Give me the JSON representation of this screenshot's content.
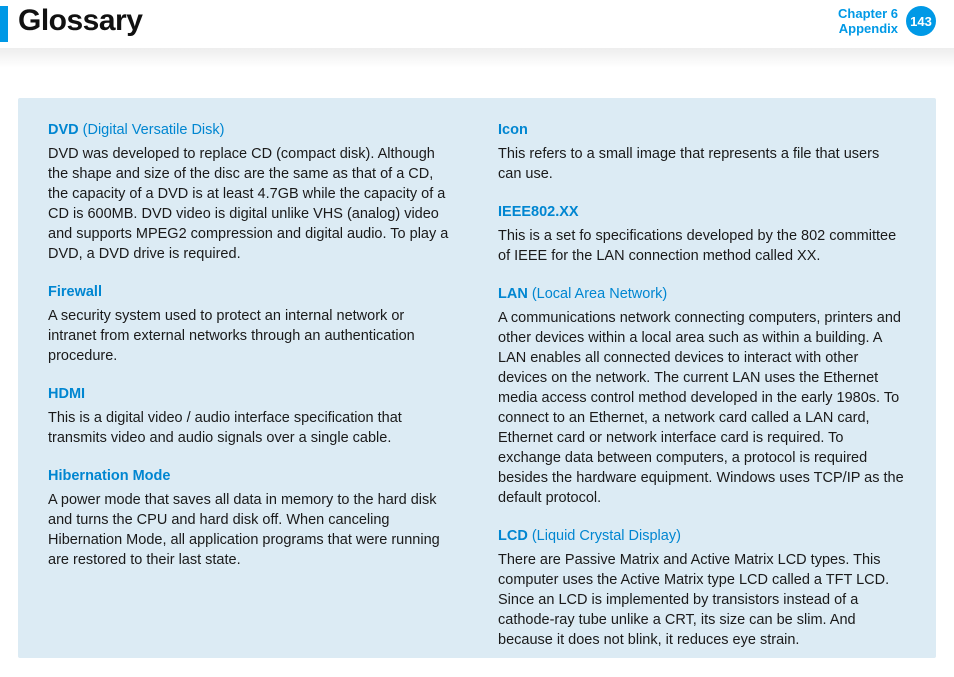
{
  "header": {
    "title": "Glossary",
    "chapter_line1": "Chapter 6",
    "chapter_line2": "Appendix",
    "page_number": "143"
  },
  "colors": {
    "accent": "#0099e6",
    "panel_bg": "#dcebf4",
    "text": "#1a1a1a",
    "term": "#0086d1"
  },
  "left": [
    {
      "term": "DVD",
      "sub": " (Digital Versatile Disk)",
      "def": "DVD was developed to replace CD (compact disk). Although the shape and size of the disc are the same as that of a CD, the capacity of a DVD is at least 4.7GB while the capacity of a CD is 600MB. DVD video is digital unlike VHS (analog) video and supports MPEG2 compression and digital audio. To play a DVD, a DVD drive is required."
    },
    {
      "term": "Firewall",
      "sub": "",
      "def": "A security system used to protect an internal network or intranet from external networks through an authentication procedure."
    },
    {
      "term": "HDMI",
      "sub": "",
      "def": "This is a digital video / audio interface specification that transmits video and audio signals over a single cable."
    },
    {
      "term": "Hibernation Mode",
      "sub": "",
      "def": "A power mode that saves all data in memory to the hard disk and turns the CPU and hard disk off. When canceling Hibernation Mode, all application programs that were running are restored to their last state."
    }
  ],
  "right": [
    {
      "term": "Icon",
      "sub": "",
      "def": "This refers to a small image that represents a file that users can use."
    },
    {
      "term": "IEEE802.XX",
      "sub": "",
      "def": "This is a set fo specifications developed by the 802 committee of IEEE for the LAN connection method called XX."
    },
    {
      "term": "LAN",
      "sub": " (Local Area Network)",
      "def": "A communications network connecting computers, printers and other devices within a local area such as within a building. A LAN enables all connected devices to interact with other devices on the network. The current LAN uses the Ethernet media access control method developed in the early 1980s. To connect to an Ethernet, a network card called a LAN card, Ethernet card or network interface card is required. To exchange data between computers, a protocol is required besides the hardware equipment. Windows uses TCP/IP as the default protocol."
    },
    {
      "term": "LCD",
      "sub": " (Liquid Crystal Display)",
      "def": "There are Passive Matrix and Active Matrix LCD types. This computer uses the Active Matrix type LCD called a TFT LCD. Since an LCD is implemented by transistors instead of a cathode-ray tube unlike a CRT, its size can be slim. And because it does not blink, it reduces eye strain."
    }
  ]
}
